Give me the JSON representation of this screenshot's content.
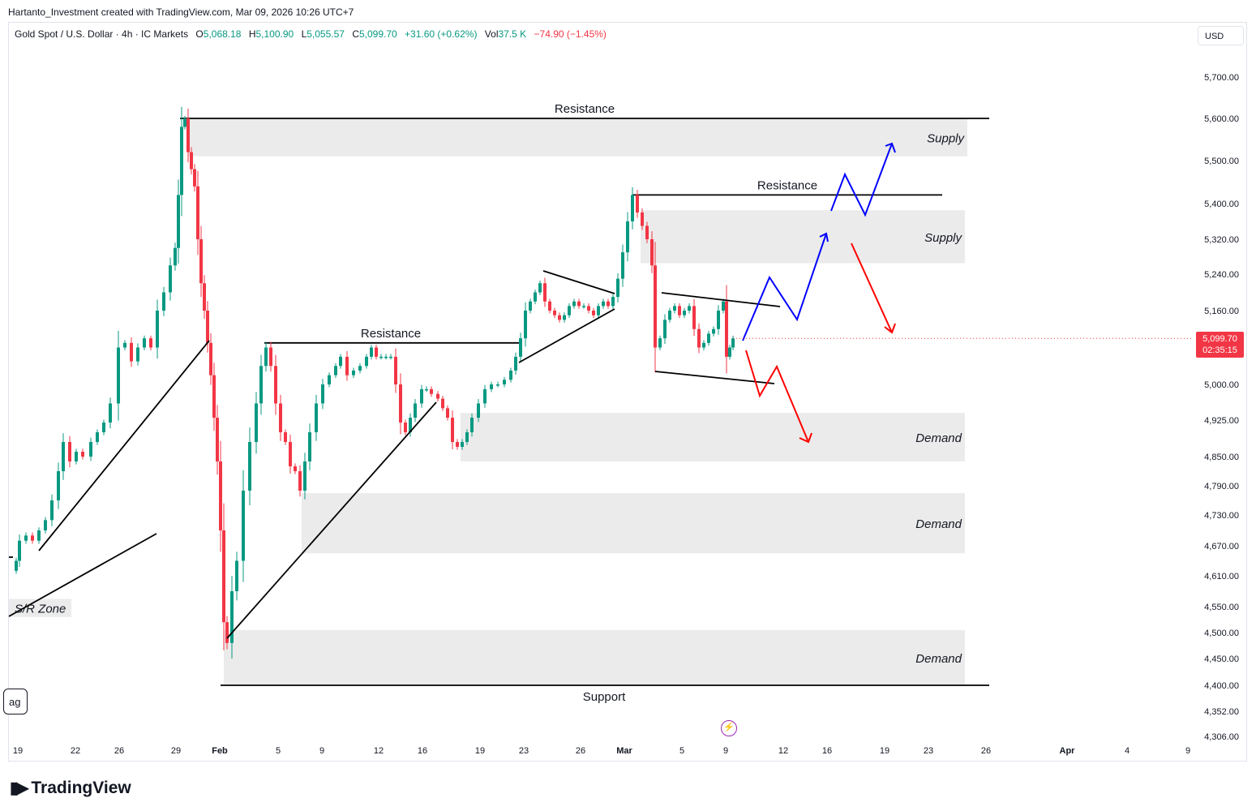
{
  "header": {
    "credit": "Hartanto_Investment created with TradingView.com, Mar 09, 2026 10:26 UTC+7"
  },
  "legend": {
    "symbol": "Gold Spot / U.S. Dollar · 4h · IC Markets",
    "o_label": "O",
    "o_value": "5,068.18",
    "h_label": "H",
    "h_value": "5,100.90",
    "l_label": "L",
    "l_value": "5,055.57",
    "c_label": "C",
    "c_value": "5,099.70",
    "change": "+31.60 (+0.62%)",
    "vol_label": "Vol",
    "vol_value": "37.5 K",
    "vol_change": "−74.90 (−1.45%)"
  },
  "currency": "USD",
  "price_tag": {
    "price": "5,099.70",
    "countdown": "02:35:15",
    "color": "#f23645"
  },
  "branding": {
    "logo_text": "TradingView"
  },
  "flag_button": "ag",
  "colors": {
    "up": "#089981",
    "down": "#f23645",
    "zone": "#ebebeb",
    "blue_path": "#0000ff",
    "red_path": "#ff0000"
  },
  "chart_data": {
    "type": "candlestick",
    "instrument": "Gold Spot / U.S. Dollar",
    "timeframe": "4h",
    "y_ticks": [
      "5,700.00",
      "5,600.00",
      "5,500.00",
      "5,400.00",
      "5,320.00",
      "5,240.00",
      "5,160.00",
      "5,000.00",
      "4,925.00",
      "4,850.00",
      "4,790.00",
      "4,730.00",
      "4,670.00",
      "4,610.00",
      "4,550.00",
      "4,500.00",
      "4,450.00",
      "4,400.00",
      "4,352.00",
      "4,306.00"
    ],
    "x_ticks": [
      {
        "label": "19",
        "bold": false
      },
      {
        "label": "22",
        "bold": false
      },
      {
        "label": "26",
        "bold": false
      },
      {
        "label": "29",
        "bold": false
      },
      {
        "label": "Feb",
        "bold": true
      },
      {
        "label": "5",
        "bold": false
      },
      {
        "label": "9",
        "bold": false
      },
      {
        "label": "12",
        "bold": false
      },
      {
        "label": "16",
        "bold": false
      },
      {
        "label": "19",
        "bold": false
      },
      {
        "label": "23",
        "bold": false
      },
      {
        "label": "26",
        "bold": false
      },
      {
        "label": "Mar",
        "bold": true
      },
      {
        "label": "5",
        "bold": false
      },
      {
        "label": "9",
        "bold": false
      },
      {
        "label": "12",
        "bold": false
      },
      {
        "label": "16",
        "bold": false
      },
      {
        "label": "19",
        "bold": false
      },
      {
        "label": "23",
        "bold": false
      },
      {
        "label": "26",
        "bold": false
      },
      {
        "label": "Apr",
        "bold": true
      },
      {
        "label": "4",
        "bold": false
      },
      {
        "label": "9",
        "bold": false
      }
    ],
    "price_path": [
      [
        11,
        4620
      ],
      [
        20,
        4640
      ],
      [
        24,
        4680
      ],
      [
        32,
        4690
      ],
      [
        40,
        4680
      ],
      [
        48,
        4700
      ],
      [
        56,
        4720
      ],
      [
        64,
        4760
      ],
      [
        72,
        4820
      ],
      [
        78,
        4880
      ],
      [
        86,
        4840
      ],
      [
        94,
        4860
      ],
      [
        102,
        4850
      ],
      [
        112,
        4880
      ],
      [
        120,
        4900
      ],
      [
        128,
        4920
      ],
      [
        136,
        4960
      ],
      [
        146,
        5080
      ],
      [
        154,
        5090
      ],
      [
        162,
        5050
      ],
      [
        170,
        5080
      ],
      [
        178,
        5100
      ],
      [
        186,
        5080
      ],
      [
        194,
        5160
      ],
      [
        202,
        5200
      ],
      [
        210,
        5260
      ],
      [
        216,
        5300
      ],
      [
        220,
        5420
      ],
      [
        224,
        5580
      ],
      [
        228,
        5600
      ],
      [
        232,
        5520
      ],
      [
        236,
        5480
      ],
      [
        240,
        5440
      ],
      [
        244,
        5320
      ],
      [
        248,
        5220
      ],
      [
        252,
        5160
      ],
      [
        256,
        5090
      ],
      [
        260,
        5020
      ],
      [
        264,
        4930
      ],
      [
        268,
        4840
      ],
      [
        272,
        4700
      ],
      [
        276,
        4520
      ],
      [
        280,
        4480
      ],
      [
        286,
        4580
      ],
      [
        292,
        4640
      ],
      [
        300,
        4780
      ],
      [
        308,
        4880
      ],
      [
        316,
        4960
      ],
      [
        322,
        5040
      ],
      [
        328,
        5080
      ],
      [
        334,
        5040
      ],
      [
        340,
        4960
      ],
      [
        346,
        4900
      ],
      [
        352,
        4880
      ],
      [
        358,
        4830
      ],
      [
        364,
        4820
      ],
      [
        370,
        4780
      ],
      [
        376,
        4840
      ],
      [
        382,
        4900
      ],
      [
        390,
        4960
      ],
      [
        398,
        5000
      ],
      [
        406,
        5020
      ],
      [
        414,
        5040
      ],
      [
        420,
        5060
      ],
      [
        428,
        5020
      ],
      [
        436,
        5030
      ],
      [
        444,
        5040
      ],
      [
        452,
        5060
      ],
      [
        458,
        5080
      ],
      [
        464,
        5060
      ],
      [
        470,
        5060
      ],
      [
        476,
        5060
      ],
      [
        482,
        5060
      ],
      [
        488,
        5000
      ],
      [
        494,
        4920
      ],
      [
        500,
        4900
      ],
      [
        506,
        4930
      ],
      [
        512,
        4960
      ],
      [
        520,
        4990
      ],
      [
        526,
        4990
      ],
      [
        532,
        4980
      ],
      [
        540,
        4970
      ],
      [
        546,
        4950
      ],
      [
        552,
        4930
      ],
      [
        558,
        4880
      ],
      [
        564,
        4870
      ],
      [
        570,
        4880
      ],
      [
        576,
        4900
      ],
      [
        582,
        4930
      ],
      [
        590,
        4960
      ],
      [
        598,
        4990
      ],
      [
        606,
        5000
      ],
      [
        614,
        5000
      ],
      [
        622,
        5010
      ],
      [
        630,
        5030
      ],
      [
        636,
        5060
      ],
      [
        642,
        5100
      ],
      [
        648,
        5160
      ],
      [
        654,
        5180
      ],
      [
        660,
        5200
      ],
      [
        666,
        5220
      ],
      [
        672,
        5180
      ],
      [
        678,
        5160
      ],
      [
        684,
        5150
      ],
      [
        690,
        5140
      ],
      [
        696,
        5150
      ],
      [
        702,
        5170
      ],
      [
        708,
        5180
      ],
      [
        714,
        5170
      ],
      [
        720,
        5170
      ],
      [
        726,
        5160
      ],
      [
        732,
        5150
      ],
      [
        738,
        5170
      ],
      [
        744,
        5180
      ],
      [
        750,
        5170
      ],
      [
        756,
        5190
      ],
      [
        762,
        5230
      ],
      [
        768,
        5290
      ],
      [
        774,
        5360
      ],
      [
        780,
        5420
      ],
      [
        786,
        5380
      ],
      [
        792,
        5350
      ],
      [
        798,
        5320
      ],
      [
        804,
        5260
      ],
      [
        808,
        5080
      ],
      [
        814,
        5100
      ],
      [
        820,
        5140
      ],
      [
        826,
        5160
      ],
      [
        832,
        5170
      ],
      [
        838,
        5150
      ],
      [
        844,
        5160
      ],
      [
        850,
        5170
      ],
      [
        856,
        5120
      ],
      [
        862,
        5080
      ],
      [
        868,
        5090
      ],
      [
        874,
        5110
      ],
      [
        880,
        5120
      ],
      [
        886,
        5160
      ],
      [
        892,
        5180
      ],
      [
        896,
        5060
      ],
      [
        900,
        5080
      ],
      [
        904,
        5099.7
      ]
    ],
    "zones": [
      {
        "label": "Supply",
        "top": 5600,
        "bottom": 5510
      },
      {
        "label": "Supply",
        "top": 5385,
        "bottom": 5265
      },
      {
        "label": "Demand",
        "top": 4940,
        "bottom": 4840
      },
      {
        "label": "Demand",
        "top": 4775,
        "bottom": 4655
      },
      {
        "label": "Demand",
        "top": 4505,
        "bottom": 4400
      },
      {
        "label": "S/R Zone",
        "top": 4565,
        "bottom": 4530
      }
    ],
    "levels": [
      {
        "label": "Resistance",
        "price": 5600
      },
      {
        "label": "Resistance",
        "price": 5420
      },
      {
        "label": "Resistance",
        "price": 5090
      },
      {
        "label": "Support",
        "price": 4400
      }
    ],
    "last_price": 5099.7
  }
}
